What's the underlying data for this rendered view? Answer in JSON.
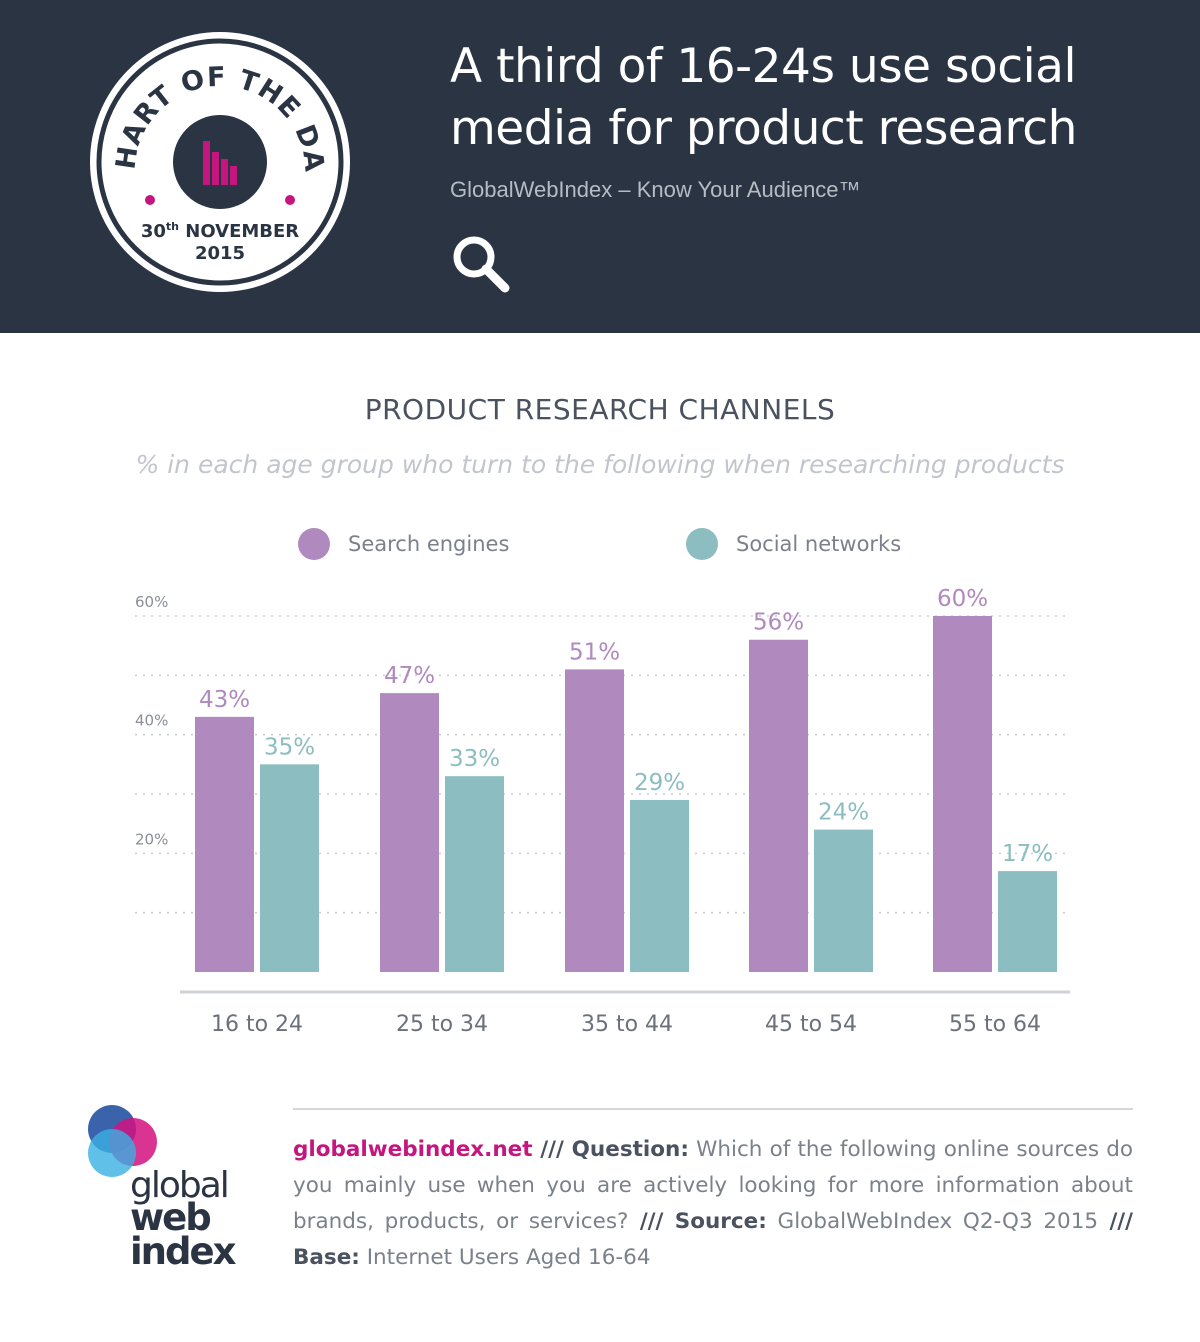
{
  "header": {
    "badge": {
      "arc_text": "CHART OF THE DAY",
      "day": "30",
      "day_suffix": "th",
      "month": "NOVEMBER",
      "year": "2015"
    },
    "title_line1": "A third of 16-24s use social",
    "title_line2": "media for product research",
    "tagline": "GlobalWebIndex – Know Your Audience™"
  },
  "colors": {
    "header_bg": "#2a3443",
    "search_engines": "#b089bf",
    "social_networks": "#8cbdc1",
    "accent": "#c4167e"
  },
  "chart_data": {
    "type": "bar",
    "title": "PRODUCT RESEARCH CHANNELS",
    "subtitle": "% in each age group who turn to the following when researching products",
    "categories": [
      "16 to 24",
      "25 to 34",
      "35 to 44",
      "45 to 54",
      "55 to 64"
    ],
    "series": [
      {
        "name": "Search engines",
        "color": "#b089bf",
        "values": [
          43,
          47,
          51,
          56,
          60
        ],
        "labels": [
          "43%",
          "47%",
          "51%",
          "56%",
          "60%"
        ]
      },
      {
        "name": "Social networks",
        "color": "#8cbdc1",
        "values": [
          35,
          33,
          29,
          24,
          17
        ],
        "labels": [
          "35%",
          "33%",
          "29%",
          "24%",
          "17%"
        ]
      }
    ],
    "yticks": [
      20,
      40,
      60
    ],
    "ytick_labels": [
      "20%",
      "40%",
      "60%"
    ],
    "ylim": [
      0,
      60
    ],
    "grid": true,
    "xlabel": "",
    "ylabel": "",
    "legend_position": "top"
  },
  "footer": {
    "site": "globalwebindex.net",
    "sep1": " /// ",
    "question_label": "Question:",
    "question_text": " Which of the following online sources do you mainly use when you are actively looking for more information about brands, products, or services?",
    "sep2": " /// ",
    "source_label": "Source:",
    "source_text": " GlobalWebIndex Q2-Q3 2015",
    "sep3": " /// ",
    "base_label": "Base:",
    "base_text": " Internet Users Aged 16-64",
    "logo_line1": "global",
    "logo_line2": "web",
    "logo_line3": "index"
  }
}
